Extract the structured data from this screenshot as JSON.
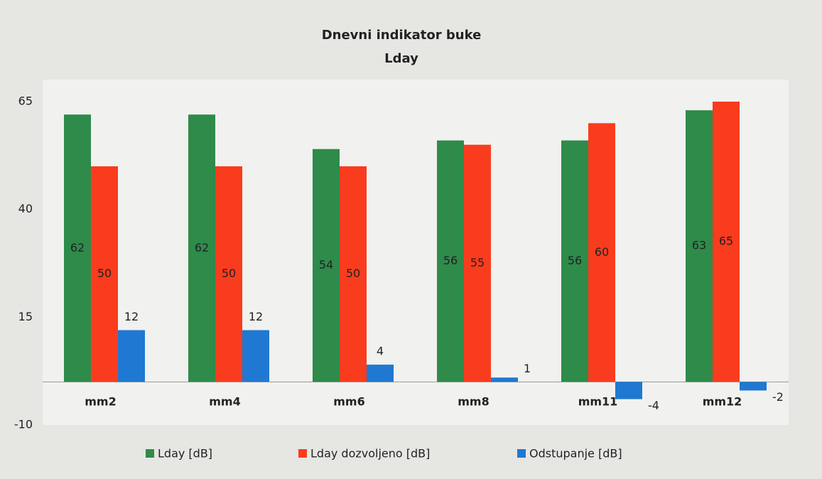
{
  "chart_data": {
    "type": "bar",
    "title": "Dnevni indikator buke",
    "subtitle": "Lday",
    "categories": [
      "mm2",
      "mm4",
      "mm6",
      "mm8",
      "mm11",
      "mm12"
    ],
    "series": [
      {
        "name": "Lday [dB]",
        "color": "#2e8b4a",
        "values": [
          62,
          62,
          54,
          56,
          56,
          63
        ]
      },
      {
        "name": "Lday dozvoljeno [dB]",
        "color": "#fa3c1e",
        "values": [
          50,
          50,
          50,
          55,
          60,
          65
        ]
      },
      {
        "name": "Odstupanje [dB]",
        "color": "#1f78d1",
        "values": [
          12,
          12,
          4,
          1,
          -4,
          -2
        ]
      }
    ],
    "ylim": [
      -10,
      65
    ],
    "yticks": [
      -10,
      15,
      40,
      65
    ],
    "grid": false,
    "legend": "bottom"
  }
}
